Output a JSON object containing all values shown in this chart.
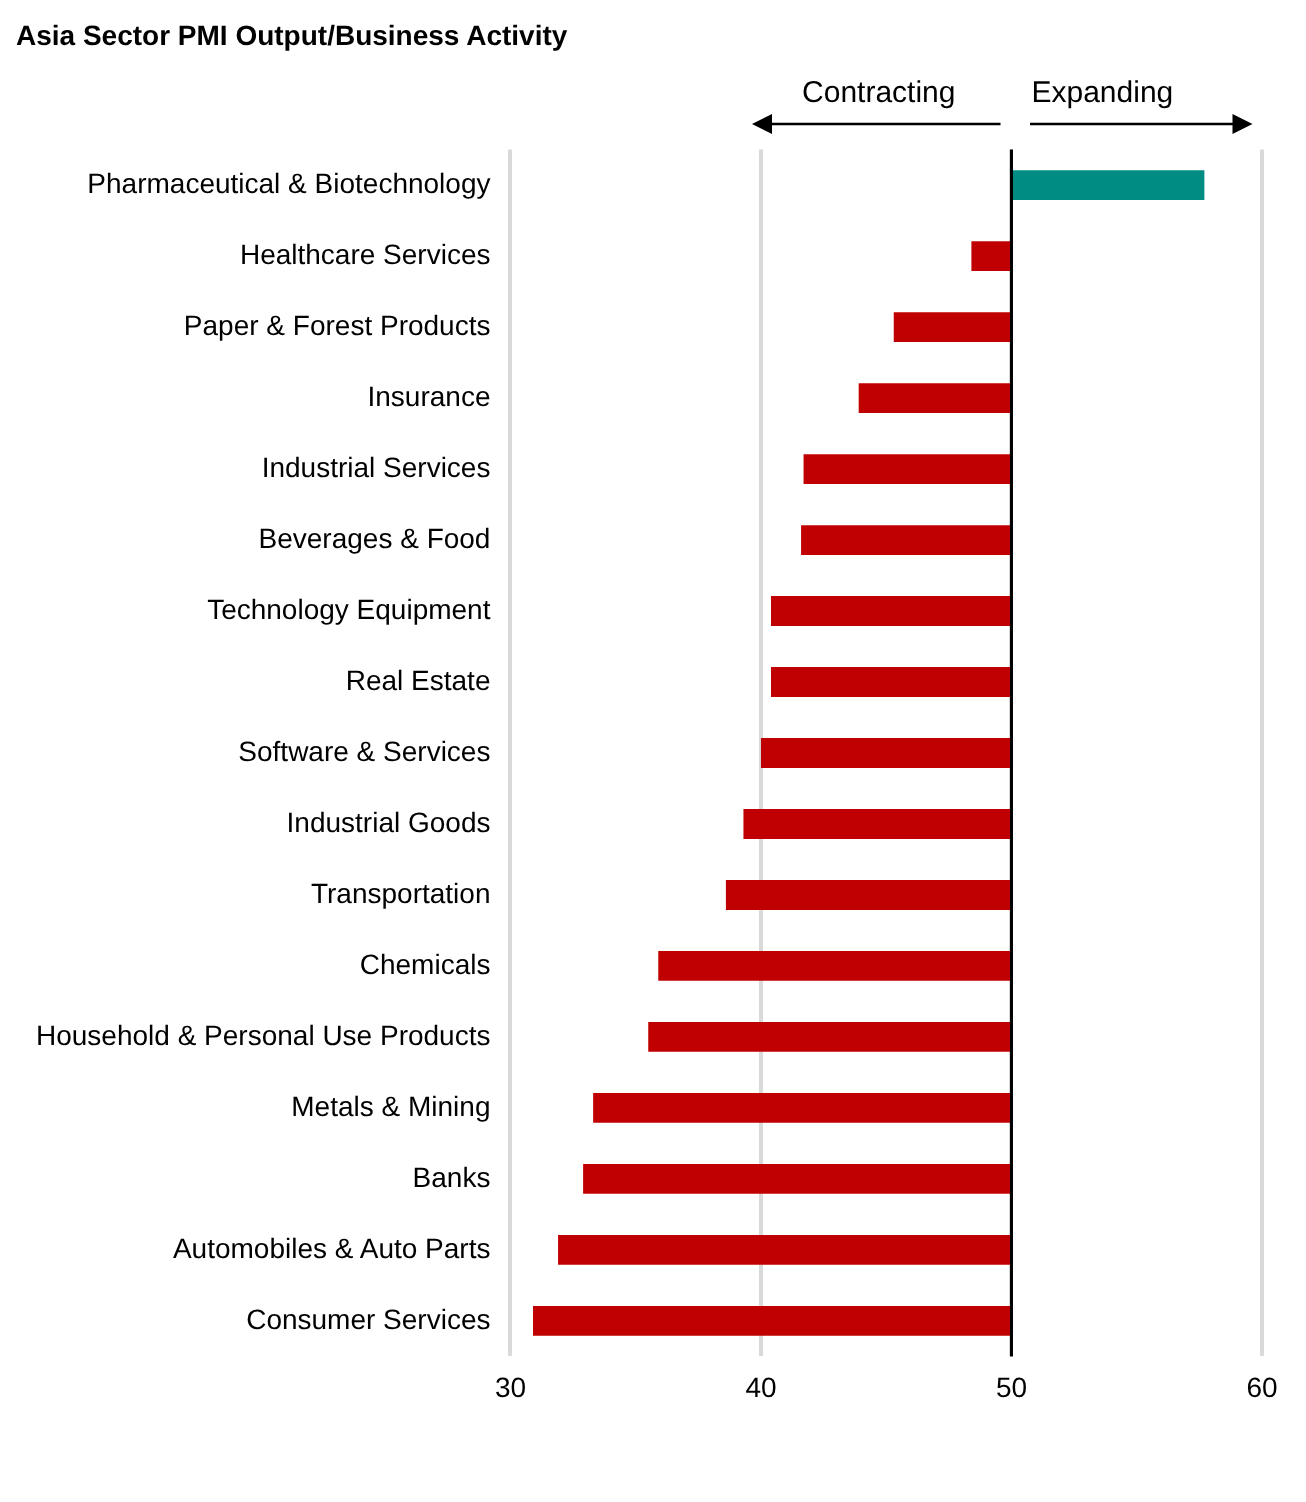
{
  "chart_data": {
    "type": "bar",
    "orientation": "horizontal",
    "title": "Asia Sector PMI Output/Business Activity",
    "categories": [
      "Pharmaceutical & Biotechnology",
      "Healthcare Services",
      "Paper & Forest Products",
      "Insurance",
      "Industrial Services",
      "Beverages & Food",
      "Technology Equipment",
      "Real Estate",
      "Software & Services",
      "Industrial Goods",
      "Transportation",
      "Chemicals",
      "Household & Personal Use Products",
      "Metals & Mining",
      "Banks",
      "Automobiles & Auto Parts",
      "Consumer Services"
    ],
    "base": [
      50,
      50,
      50,
      50,
      50,
      50,
      50,
      50,
      50,
      50,
      50,
      50,
      50,
      50,
      50,
      50,
      50
    ],
    "values": [
      7.7,
      -1.6,
      -4.7,
      -6.1,
      -8.3,
      -8.4,
      -9.6,
      -9.6,
      -10.0,
      -10.7,
      -11.4,
      -14.1,
      -14.5,
      -16.7,
      -17.1,
      -18.1,
      -19.1
    ],
    "colors": [
      "#008c82",
      "#c00000",
      "#c00000",
      "#c00000",
      "#c00000",
      "#c00000",
      "#c00000",
      "#c00000",
      "#c00000",
      "#c00000",
      "#c00000",
      "#c00000",
      "#c00000",
      "#c00000",
      "#c00000",
      "#c00000",
      "#c00000"
    ],
    "xlim": [
      30,
      60
    ],
    "xticks": [
      30,
      40,
      50,
      60
    ],
    "grid": "x",
    "legend": false,
    "ref_lines": [
      {
        "axis": "x",
        "value": 50,
        "color": "#000000"
      }
    ],
    "annotations": [
      "Contracting",
      "Expanding"
    ]
  }
}
